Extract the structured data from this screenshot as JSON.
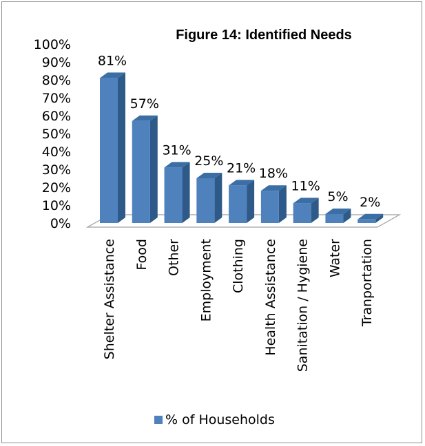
{
  "chart_data": {
    "type": "bar",
    "title": "Figure 14: Identified Needs",
    "categories": [
      "Shelter Assistance",
      "Food",
      "Other",
      "Employment",
      "Clothing",
      "Health Assistance",
      "Sanitation / Hygiene",
      "Water",
      "Tranportation"
    ],
    "series": [
      {
        "name": "% of Households",
        "values": [
          81,
          57,
          31,
          25,
          21,
          18,
          11,
          5,
          2
        ],
        "data_labels": [
          "81%",
          "57%",
          "31%",
          "25%",
          "21%",
          "18%",
          "11%",
          "5%",
          "2%"
        ]
      }
    ],
    "ylim": [
      0,
      100
    ],
    "yticks": [
      "0%",
      "10%",
      "20%",
      "30%",
      "40%",
      "50%",
      "60%",
      "70%",
      "80%",
      "90%",
      "100%"
    ],
    "grid": false,
    "legend_position": "bottom",
    "colors": {
      "bar_front": "#4f81bd",
      "bar_side": "#2e5a8a",
      "bar_top": "#3b6ea5",
      "floor": "#a0a0a0"
    }
  }
}
